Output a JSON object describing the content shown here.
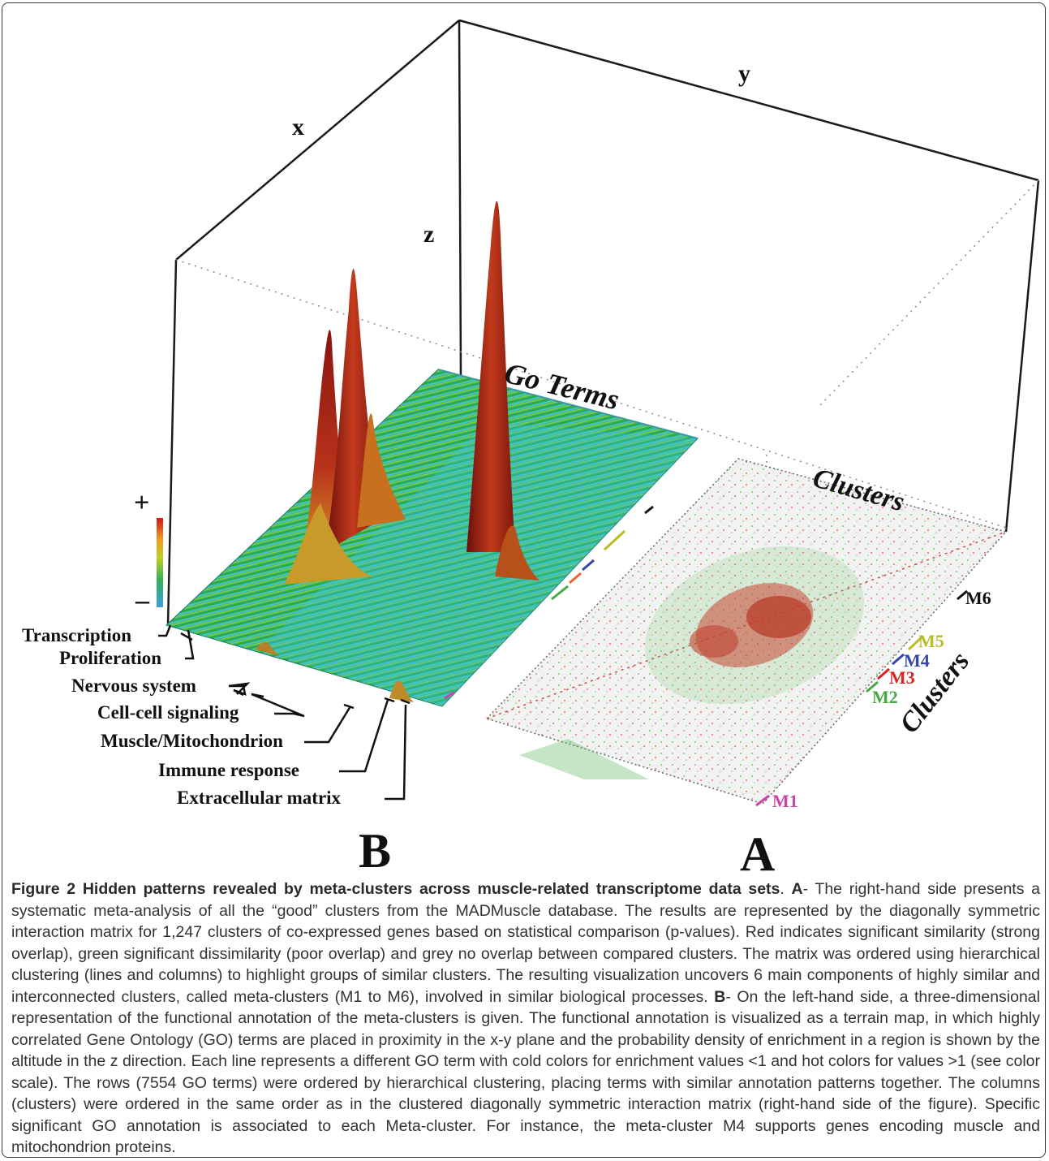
{
  "figure": {
    "axes": {
      "x": "x",
      "y": "y",
      "z": "z"
    },
    "panel_labels": {
      "left": "B",
      "right": "A"
    },
    "surface_label": "Go Terms",
    "matrix_top_label": "Clusters",
    "matrix_side_label": "Clusters",
    "color_scale": {
      "plus": "+",
      "minus": "–"
    },
    "go_categories": [
      "Transcription",
      "Proliferation",
      "Nervous system",
      "Cell-cell signaling",
      "Muscle/Mitochondrion",
      "Immune response",
      "Extracellular matrix"
    ],
    "meta_clusters": [
      {
        "label": "M1",
        "color": "#cc44aa"
      },
      {
        "label": "M2",
        "color": "#44aa44"
      },
      {
        "label": "M3",
        "color": "#dd2222"
      },
      {
        "label": "M4",
        "color": "#3344aa"
      },
      {
        "label": "M5",
        "color": "#bbbb22"
      },
      {
        "label": "M6",
        "color": "#111111"
      }
    ]
  },
  "caption": {
    "label": "Figure 2",
    "title": "Hidden patterns revealed by meta-clusters across muscle-related transcriptome data sets",
    "sep": ". ",
    "a_letter": "A",
    "a_text": "- The right-hand side presents a systematic meta-analysis of all the “good” clusters from the MADMuscle database. The results are represented by the diagonally symmetric interaction matrix for 1,247 clusters of co-expressed genes based on statistical comparison (p-values). Red indicates significant similarity (strong overlap), green significant dissimilarity (poor overlap) and grey no overlap between compared clusters. The matrix was ordered using hierarchical clustering (lines and columns) to highlight groups of similar clusters. The resulting visualization uncovers 6 main components of highly similar and interconnected clusters, called meta-clusters (M1 to M6), involved in similar biological processes. ",
    "b_letter": "B",
    "b_text": "- On the left-hand side, a three-dimensional representation of the functional annotation of the meta-clusters is given. The functional annotation is visualized as a terrain map, in which highly correlated Gene Ontology (GO) terms are placed in proximity in the x-y plane and the probability density of enrichment in a region is shown by the altitude in the z direction. Each line represents a different GO term with cold colors for enrichment values <1 and hot colors for values >1 (see color scale). The rows (7554 GO terms) were ordered by hierarchical clustering, placing terms with similar annotation patterns together. The columns (clusters) were ordered in the same order as in the clustered diagonally symmetric interaction matrix (right-hand side of the figure). Specific significant GO annotation is associated to each Meta-cluster. For instance, the meta-cluster M4 supports genes encoding muscle and mitochondrion proteins."
  }
}
